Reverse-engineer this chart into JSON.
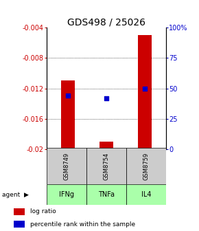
{
  "title": "GDS498 / 25026",
  "samples": [
    "GSM8749",
    "GSM8754",
    "GSM8759"
  ],
  "agents": [
    "IFNg",
    "TNFa",
    "IL4"
  ],
  "log_ratios": [
    -0.011,
    -0.019,
    -0.005
  ],
  "baseline": -0.02,
  "percentile_ranks_pct": [
    44,
    42,
    50
  ],
  "ylim_left": [
    -0.02,
    -0.004
  ],
  "ylim_right": [
    0,
    100
  ],
  "yticks_left": [
    -0.02,
    -0.016,
    -0.012,
    -0.008,
    -0.004
  ],
  "ytick_labels_left": [
    "-0.02",
    "-0.016",
    "-0.012",
    "-0.008",
    "-0.004"
  ],
  "yticks_right": [
    0,
    25,
    50,
    75,
    100
  ],
  "ytick_labels_right": [
    "0",
    "25",
    "50",
    "75",
    "100%"
  ],
  "bar_color": "#cc0000",
  "dot_color": "#0000cc",
  "agent_bg_color": "#aaffaa",
  "sample_bg_color": "#cccccc",
  "legend_labels": [
    "log ratio",
    "percentile rank within the sample"
  ],
  "bar_width": 0.35,
  "title_fontsize": 10,
  "axis_fontsize": 7,
  "label_fontsize": 7,
  "sample_label_fontsize": 6,
  "agent_label_fontsize": 7
}
